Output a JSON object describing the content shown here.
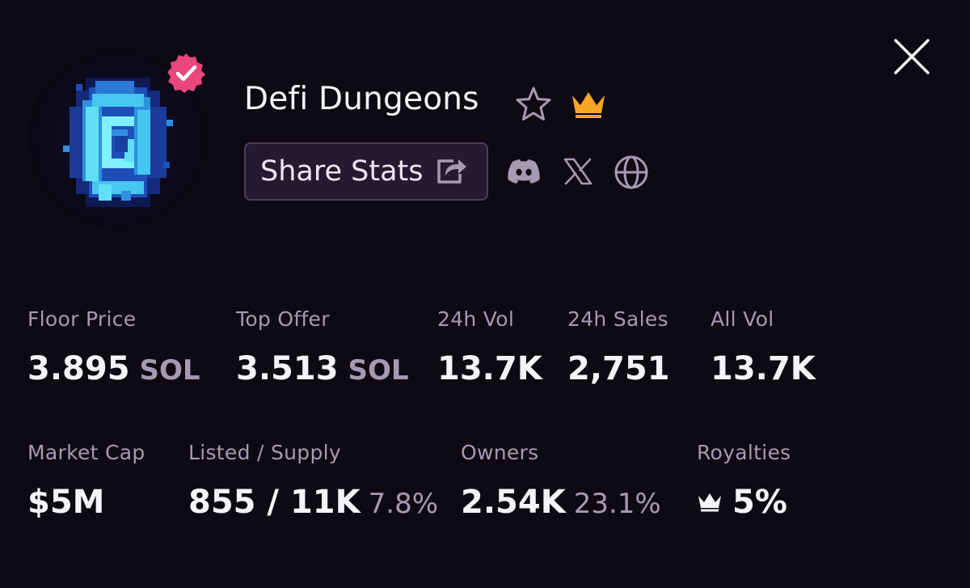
{
  "collection": {
    "title": "Defi Dungeons",
    "verified": true,
    "avatar": "blue-portal-pixel-art"
  },
  "actions": {
    "share_label": "Share Stats",
    "socials": [
      "discord-icon",
      "x-icon",
      "globe-icon"
    ]
  },
  "stats_row1": [
    {
      "label": "Floor Price",
      "value": "3.895",
      "unit": "SOL"
    },
    {
      "label": "Top Offer",
      "value": "3.513",
      "unit": "SOL"
    },
    {
      "label": "24h Vol",
      "value": "13.7K"
    },
    {
      "label": "24h Sales",
      "value": "2,751"
    },
    {
      "label": "All Vol",
      "value": "13.7K"
    }
  ],
  "stats_row2": [
    {
      "label": "Market Cap",
      "value": "$5M"
    },
    {
      "label": "Listed / Supply",
      "value": "855 / 11K",
      "pct": "7.8%"
    },
    {
      "label": "Owners",
      "value": "2.54K",
      "pct": "23.1%"
    },
    {
      "label": "Royalties",
      "value": "5%"
    }
  ],
  "colors": {
    "background": "#0e0a14",
    "verified_badge": "#e8467c",
    "crown": "#f5a623",
    "muted_text": "#a49bb2",
    "button_bg": "#231b2f"
  }
}
